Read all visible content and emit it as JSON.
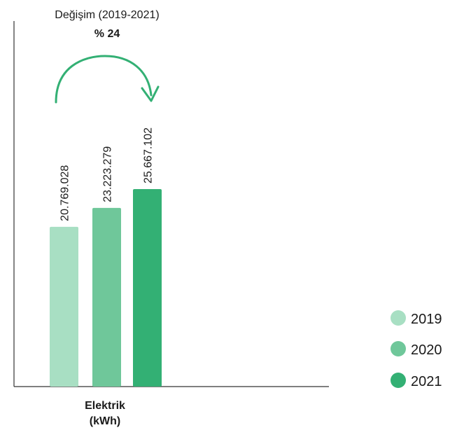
{
  "chart_data": {
    "type": "bar",
    "categories": [
      "Elektrik (kWh)"
    ],
    "category_label_lines": [
      "Elektrik",
      "(kWh)"
    ],
    "series": [
      {
        "name": "2019",
        "values": [
          20769028
        ],
        "label": "20.769.028",
        "color": "#a8dfc3"
      },
      {
        "name": "2020",
        "values": [
          23223279
        ],
        "label": "23.223.279",
        "color": "#6fc79a"
      },
      {
        "name": "2021",
        "values": [
          25667102
        ],
        "label": "25.667.102",
        "color": "#33b074"
      }
    ],
    "change_annotation": {
      "title": "Değişim (2019-2021)",
      "value": "% 24",
      "arrow_color": "#33b074"
    },
    "legend_position": "bottom-right",
    "grid": false
  }
}
